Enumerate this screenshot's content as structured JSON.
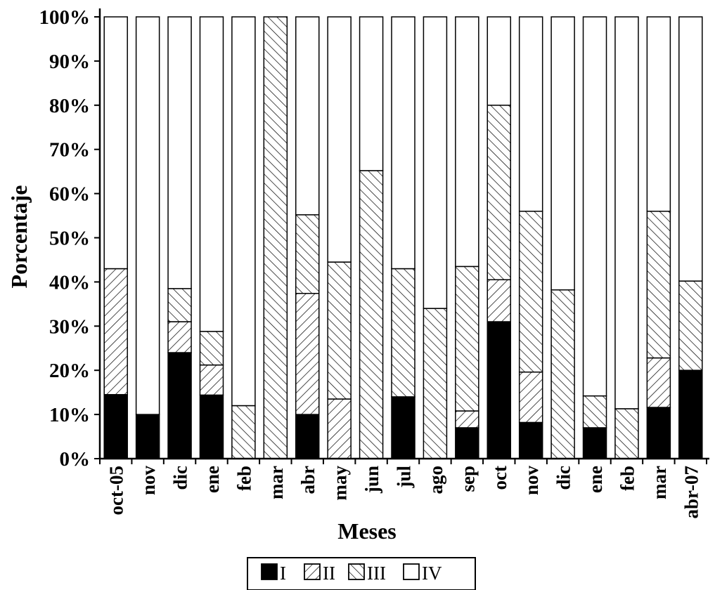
{
  "chart_data": {
    "type": "bar",
    "stacked": true,
    "normalized": true,
    "title": "",
    "xlabel": "Meses",
    "ylabel": "Porcentaje",
    "ylim": [
      0,
      100
    ],
    "yticks": [
      "0%",
      "10%",
      "20%",
      "30%",
      "40%",
      "50%",
      "60%",
      "70%",
      "80%",
      "90%",
      "100%"
    ],
    "grid": false,
    "legend_position": "bottom",
    "categories": [
      "oct-05",
      "nov",
      "dic",
      "ene",
      "feb",
      "mar",
      "abr",
      "may",
      "jun",
      "jul",
      "ago",
      "sep",
      "oct",
      "nov",
      "dic",
      "ene",
      "feb",
      "mar",
      "abr-07"
    ],
    "series": [
      {
        "name": "I",
        "pattern": "solid",
        "color": "#000000",
        "values": [
          14.5,
          10.0,
          24.0,
          14.4,
          0.0,
          0.0,
          10.0,
          0.0,
          0.0,
          14.0,
          0.0,
          7.0,
          31.0,
          8.2,
          0.0,
          7.0,
          0.0,
          11.6,
          20.0
        ]
      },
      {
        "name": "II",
        "pattern": "forward-hatch",
        "color": "#000000",
        "values": [
          28.5,
          0.0,
          7.0,
          6.8,
          0.0,
          0.0,
          27.4,
          13.5,
          0.0,
          0.0,
          0.0,
          3.8,
          9.5,
          11.4,
          0.0,
          0.0,
          0.0,
          11.2,
          0.0
        ]
      },
      {
        "name": "III",
        "pattern": "back-hatch",
        "color": "#000000",
        "values": [
          0.0,
          0.0,
          7.5,
          7.6,
          12.0,
          100.0,
          17.8,
          31.0,
          65.2,
          29.0,
          34.0,
          32.7,
          39.5,
          36.4,
          38.2,
          7.2,
          11.3,
          33.2,
          20.2
        ]
      },
      {
        "name": "IV",
        "pattern": "empty",
        "color": "#ffffff",
        "values": [
          57.0,
          90.0,
          61.5,
          71.2,
          88.0,
          0.0,
          44.8,
          55.5,
          34.8,
          57.0,
          66.0,
          56.5,
          20.0,
          44.0,
          61.8,
          85.8,
          88.7,
          44.0,
          59.8
        ]
      }
    ]
  }
}
